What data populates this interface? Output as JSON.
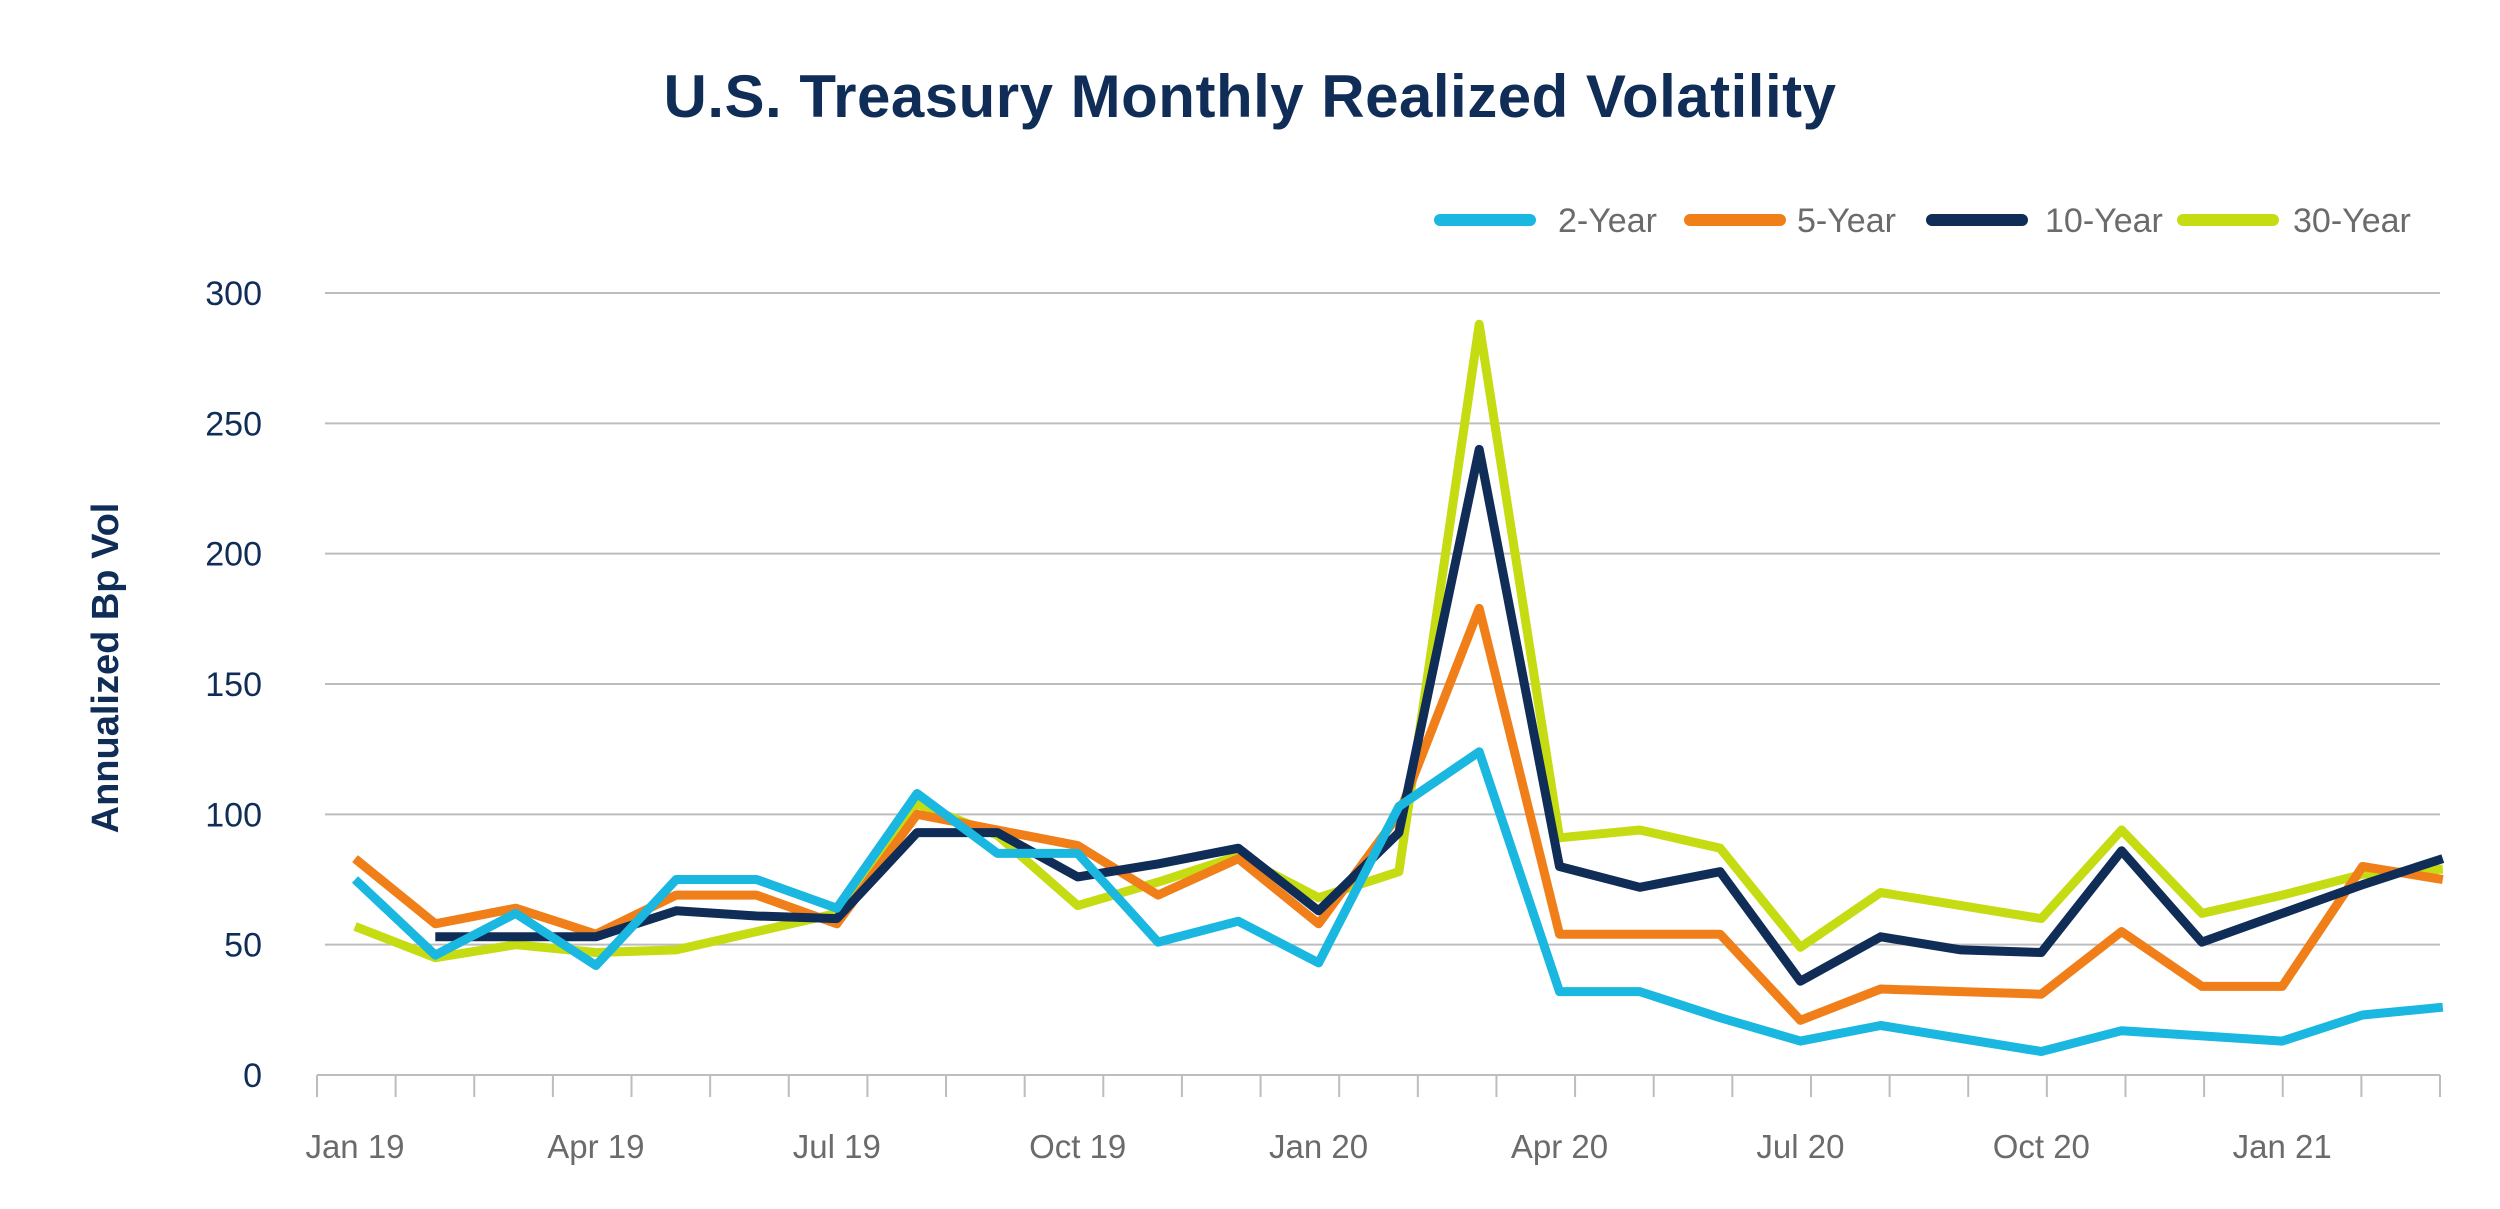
{
  "chart_data": {
    "type": "line",
    "title": "U.S. Treasury Monthly Realized Volatility",
    "ylabel": "Annualized Bp Vol",
    "xlabel": "",
    "ylim": [
      0,
      300
    ],
    "yticks": [
      "0",
      "50",
      "100",
      "150",
      "200",
      "250",
      "300"
    ],
    "ytick_values": [
      0,
      50,
      100,
      150,
      200,
      250,
      300
    ],
    "x": [
      "Jan 19",
      "Feb 19",
      "Mar 19",
      "Apr 19",
      "May 19",
      "Jun 19",
      "Jul 19",
      "Aug 19",
      "Sep 19",
      "Oct 19",
      "Nov 19",
      "Dec 19",
      "Jan 20",
      "Feb 20",
      "Mar 20",
      "Apr 20",
      "May 20",
      "Jun 20",
      "Jul 20",
      "Aug 20",
      "Sep 20",
      "Oct 20",
      "Nov 20",
      "Dec 20",
      "Jan 21",
      "Feb 21",
      "Mar 21"
    ],
    "xtick_labels": [
      {
        "index": 0,
        "label": "Jan 19"
      },
      {
        "index": 3,
        "label": "Apr 19"
      },
      {
        "index": 6,
        "label": "Jul 19"
      },
      {
        "index": 9,
        "label": "Oct 19"
      },
      {
        "index": 12,
        "label": "Jan 20"
      },
      {
        "index": 15,
        "label": "Apr 20"
      },
      {
        "index": 18,
        "label": "Jul 20"
      },
      {
        "index": 21,
        "label": "Oct 20"
      },
      {
        "index": 24,
        "label": "Jan 21"
      }
    ],
    "grid": true,
    "legend_position": "top-right",
    "series": [
      {
        "name": "2-Year",
        "color": "#1ab7e0",
        "values": [
          75,
          46,
          62,
          42,
          75,
          75,
          64,
          108,
          85,
          85,
          51,
          59,
          43,
          103,
          124,
          32,
          32,
          22,
          13,
          19,
          14,
          9,
          17,
          15,
          13,
          23,
          26
        ]
      },
      {
        "name": "5-Year",
        "color": "#f07f1a",
        "values": [
          83,
          58,
          64,
          54,
          69,
          69,
          58,
          100,
          94,
          88,
          69,
          83,
          58,
          100,
          179,
          54,
          54,
          54,
          21,
          33,
          32,
          31,
          55,
          34,
          34,
          80,
          75
        ]
      },
      {
        "name": "10-Year",
        "color": "#0f2d57",
        "values": [
          null,
          53,
          53,
          53,
          63,
          61,
          60,
          93,
          93,
          76,
          81,
          87,
          63,
          93,
          240,
          80,
          72,
          78,
          36,
          53,
          48,
          47,
          86,
          51,
          62,
          73,
          83
        ]
      },
      {
        "name": "30-Year",
        "color": "#c6dc12",
        "values": [
          57,
          45,
          50,
          47,
          48,
          55,
          62,
          104,
          92,
          65,
          74,
          84,
          68,
          78,
          288,
          91,
          94,
          87,
          49,
          70,
          65,
          60,
          94,
          62,
          69,
          77,
          79
        ]
      }
    ]
  }
}
